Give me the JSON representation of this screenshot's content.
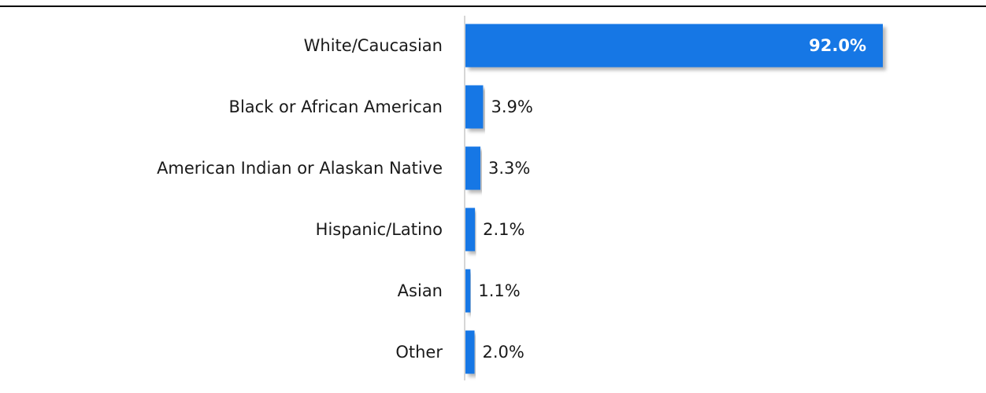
{
  "chart_data": {
    "type": "bar",
    "orientation": "horizontal",
    "title": "",
    "categories": [
      "White/Caucasian",
      "Black or African American",
      "American Indian or Alaskan Native",
      "Hispanic/Latino",
      "Asian",
      "Other"
    ],
    "values": [
      92.0,
      3.9,
      3.3,
      2.1,
      1.1,
      2.0
    ],
    "value_labels": [
      "92.0%",
      "3.9%",
      "3.3%",
      "2.1%",
      "1.1%",
      "2.0%"
    ],
    "xlim": [
      0,
      100
    ],
    "grid": false,
    "legend": "none",
    "colors": {
      "bar": "#1677e5",
      "shadow": "#bdbdbd",
      "axis": "#c8c8c8",
      "top_rule": "#000000"
    }
  }
}
